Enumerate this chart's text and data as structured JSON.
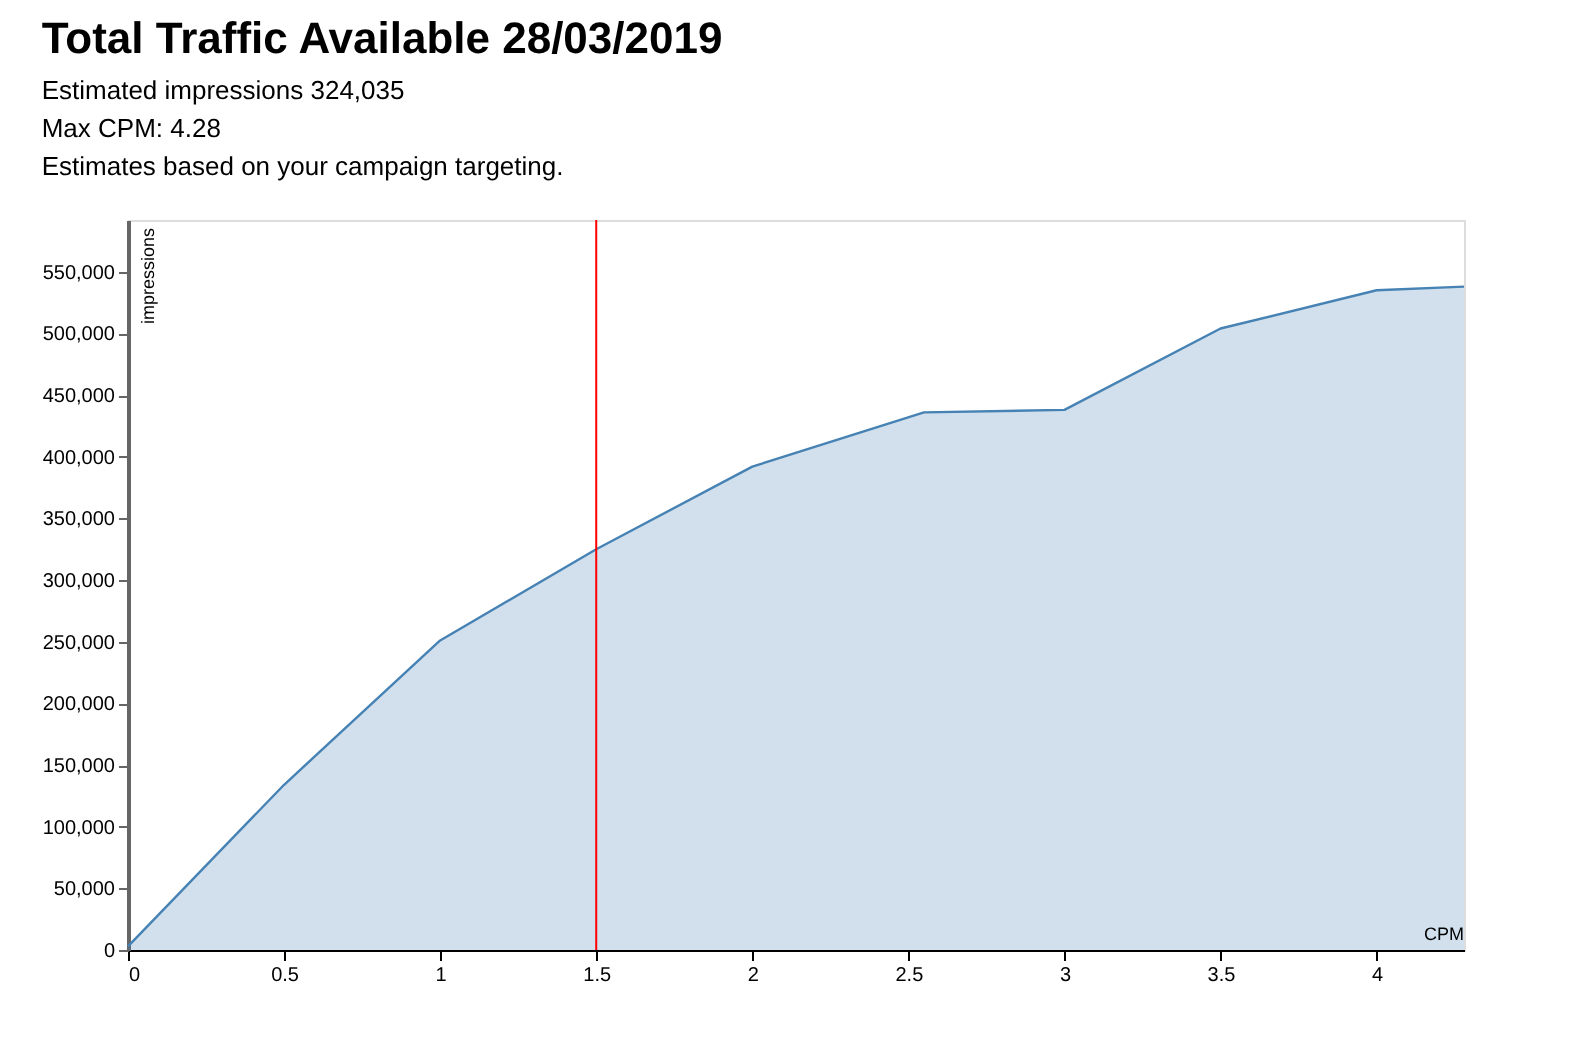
{
  "chart_data": {
    "type": "area",
    "title": "Total Traffic Available 28/03/2019",
    "subtitle": "Estimated impressions 324,035",
    "annotations": [
      "Max CPM: 4.28",
      "Estimates based on your campaign targeting."
    ],
    "xlabel": "CPM",
    "ylabel": "impressions",
    "x": [
      0,
      0.5,
      1,
      1.5,
      2,
      2.55,
      3,
      3.5,
      4,
      4.28
    ],
    "series": [
      {
        "color": "#4682b4",
        "values": [
          3000,
          134000,
          251000,
          325000,
          392000,
          436000,
          438000,
          504000,
          535000,
          538000
        ]
      }
    ],
    "xlim": [
      0,
      4.28
    ],
    "ylim": [
      0,
      592000
    ],
    "xticks": [
      0,
      0.5,
      1,
      1.5,
      2,
      2.5,
      3,
      3.5,
      4
    ],
    "yticks": [
      0,
      {
        "value": 50000,
        "label": "50,000"
      },
      {
        "value": 100000,
        "label": "100,000"
      },
      {
        "value": 150000,
        "label": "150,000"
      },
      {
        "value": 200000,
        "label": "200,000"
      },
      {
        "value": 250000,
        "label": "250,000"
      },
      {
        "value": 300000,
        "label": "300,000"
      },
      {
        "value": 350000,
        "label": "350,000"
      },
      {
        "value": 400000,
        "label": "400,000"
      },
      {
        "value": 450000,
        "label": "450,000"
      },
      {
        "value": 500000,
        "label": "500,000"
      },
      {
        "value": 550000,
        "label": "550,000"
      }
    ],
    "ref_lines": [
      {
        "axis": "x",
        "value": 1.5,
        "color": "#ff0000"
      }
    ],
    "grid": false
  }
}
